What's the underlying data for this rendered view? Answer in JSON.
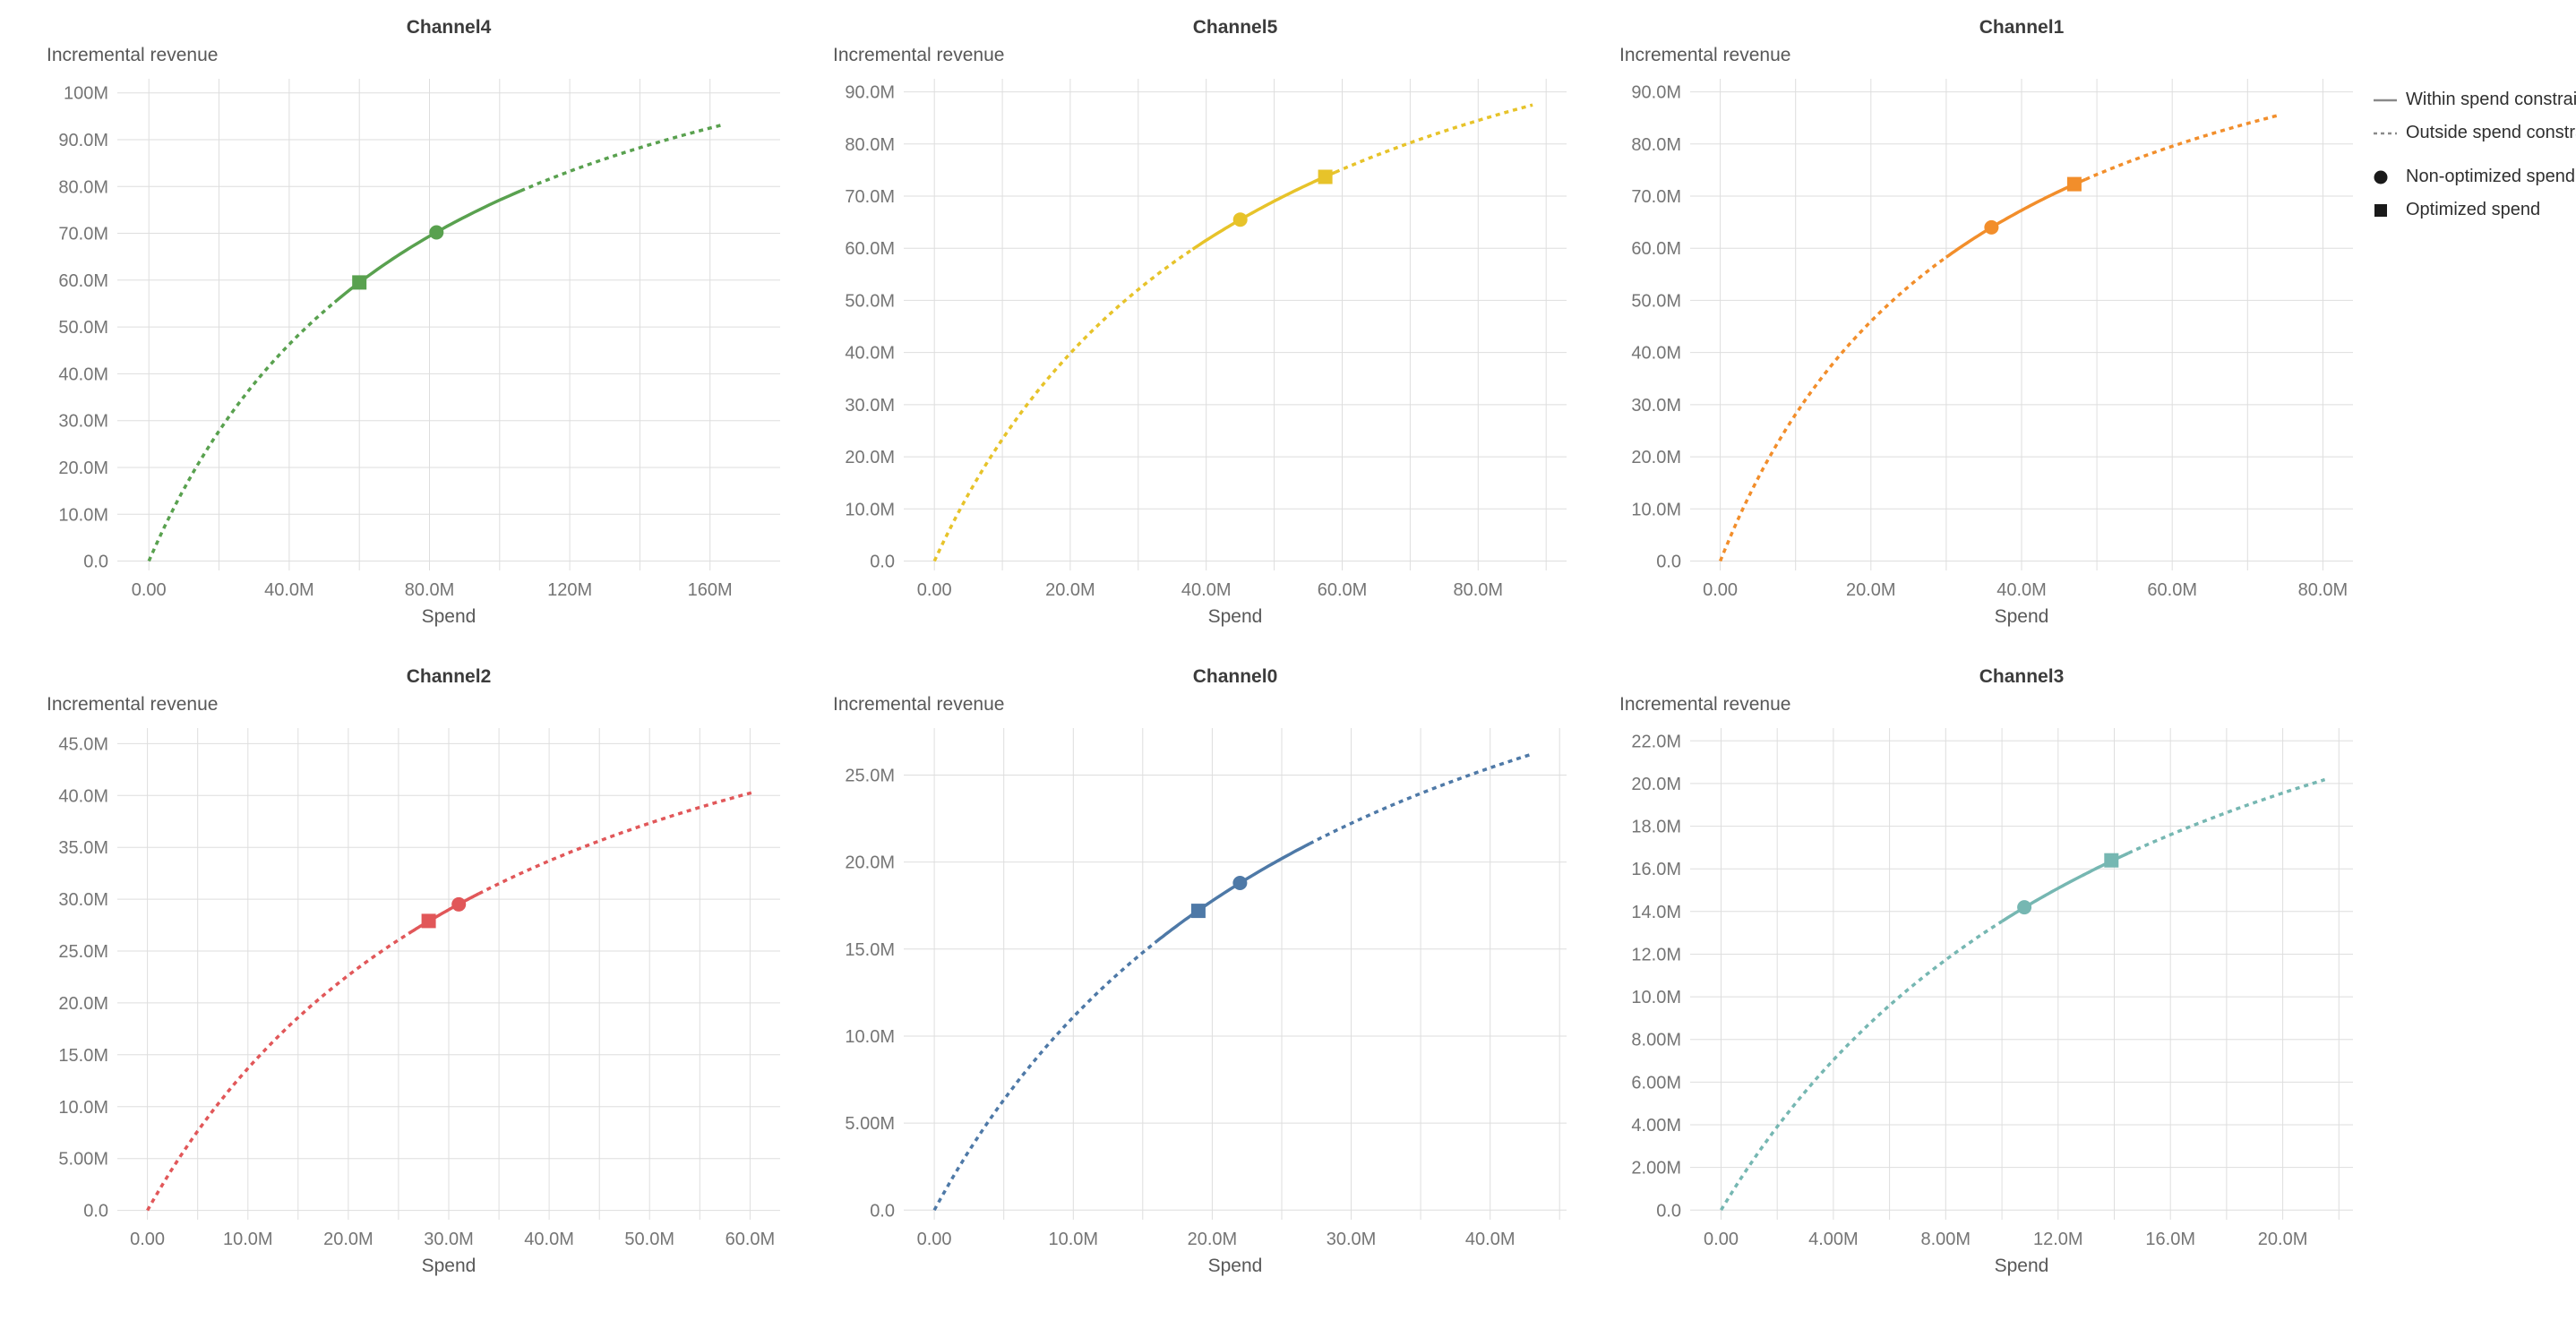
{
  "page": {
    "background": "#ffffff"
  },
  "legend": {
    "position": "top-right",
    "items": [
      {
        "label": "Within spend constraint",
        "symbol": "solid-line"
      },
      {
        "label": "Outside spend constraint",
        "symbol": "dashed-line"
      },
      {
        "label": "Non-optimized spend",
        "symbol": "circle"
      },
      {
        "label": "Optimized spend",
        "symbol": "square"
      }
    ]
  },
  "chart_data": [
    {
      "type": "line",
      "title": "Channel4",
      "xlabel": "Spend",
      "ylabel": "Incremental revenue",
      "color": "#59a14f",
      "x_domain": [
        -9,
        180
      ],
      "y_domain": [
        -2,
        103
      ],
      "x_grid_step": 20,
      "x_grid_max": 160,
      "x_ticks": [
        {
          "v": 0,
          "label": "0.00"
        },
        {
          "v": 40,
          "label": "40.0M"
        },
        {
          "v": 80,
          "label": "80.0M"
        },
        {
          "v": 120,
          "label": "120M"
        },
        {
          "v": 160,
          "label": "160M"
        }
      ],
      "y_ticks": [
        {
          "v": 0,
          "label": "0.0"
        },
        {
          "v": 10,
          "label": "10.0M"
        },
        {
          "v": 20,
          "label": "20.0M"
        },
        {
          "v": 30,
          "label": "30.0M"
        },
        {
          "v": 40,
          "label": "40.0M"
        },
        {
          "v": 50,
          "label": "50.0M"
        },
        {
          "v": 60,
          "label": "60.0M"
        },
        {
          "v": 70,
          "label": "70.0M"
        },
        {
          "v": 80,
          "label": "80.0M"
        },
        {
          "v": 90,
          "label": "90.0M"
        },
        {
          "v": 100,
          "label": "100M"
        }
      ],
      "curve": {
        "model": "hill",
        "vmax": 138.6,
        "half_saturation": 79.8,
        "x_end": 163,
        "solid_start": 53,
        "solid_end": 106
      },
      "curve_samples": [
        {
          "x": 40,
          "y": 46.3
        },
        {
          "x": 80,
          "y": 69.4
        },
        {
          "x": 120,
          "y": 83.2
        },
        {
          "x": 160,
          "y": 92.5
        }
      ],
      "points": {
        "non_optimized": {
          "x": 82,
          "y": 70.2
        },
        "optimized": {
          "x": 60,
          "y": 59.5
        }
      },
      "value_unit": "M"
    },
    {
      "type": "line",
      "title": "Channel5",
      "xlabel": "Spend",
      "ylabel": "Incremental revenue",
      "color": "#e7c32a",
      "x_domain": [
        -4.5,
        93
      ],
      "y_domain": [
        -1.8,
        92.5
      ],
      "x_grid_step": 10,
      "x_grid_max": 90,
      "x_ticks": [
        {
          "v": 0,
          "label": "0.00"
        },
        {
          "v": 20,
          "label": "20.0M"
        },
        {
          "v": 40,
          "label": "40.0M"
        },
        {
          "v": 60,
          "label": "60.0M"
        },
        {
          "v": 80,
          "label": "80.0M"
        }
      ],
      "y_ticks": [
        {
          "v": 0,
          "label": "0.0"
        },
        {
          "v": 10,
          "label": "10.0M"
        },
        {
          "v": 20,
          "label": "20.0M"
        },
        {
          "v": 30,
          "label": "30.0M"
        },
        {
          "v": 40,
          "label": "40.0M"
        },
        {
          "v": 50,
          "label": "50.0M"
        },
        {
          "v": 60,
          "label": "60.0M"
        },
        {
          "v": 70,
          "label": "70.0M"
        },
        {
          "v": 80,
          "label": "80.0M"
        },
        {
          "v": 90,
          "label": "90.0M"
        }
      ],
      "curve": {
        "model": "hill",
        "vmax": 134.9,
        "half_saturation": 47.7,
        "x_end": 88,
        "solid_start": 38,
        "solid_end": 59
      },
      "curve_samples": [
        {
          "x": 20,
          "y": 39.9
        },
        {
          "x": 40,
          "y": 61.5
        },
        {
          "x": 60,
          "y": 75.2
        },
        {
          "x": 80,
          "y": 84.5
        }
      ],
      "points": {
        "non_optimized": {
          "x": 45,
          "y": 65.5
        },
        "optimized": {
          "x": 57.5,
          "y": 73.7
        }
      },
      "value_unit": "M"
    },
    {
      "type": "line",
      "title": "Channel1",
      "xlabel": "Spend",
      "ylabel": "Incremental revenue",
      "color": "#f28e2b",
      "x_domain": [
        -4,
        84
      ],
      "y_domain": [
        -1.8,
        92.5
      ],
      "x_grid_step": 10,
      "x_grid_max": 80,
      "x_ticks": [
        {
          "v": 0,
          "label": "0.00"
        },
        {
          "v": 20,
          "label": "20.0M"
        },
        {
          "v": 40,
          "label": "40.0M"
        },
        {
          "v": 60,
          "label": "60.0M"
        },
        {
          "v": 80,
          "label": "80.0M"
        }
      ],
      "y_ticks": [
        {
          "v": 0,
          "label": "0.0"
        },
        {
          "v": 10,
          "label": "10.0M"
        },
        {
          "v": 20,
          "label": "20.0M"
        },
        {
          "v": 30,
          "label": "30.0M"
        },
        {
          "v": 40,
          "label": "40.0M"
        },
        {
          "v": 50,
          "label": "50.0M"
        },
        {
          "v": 60,
          "label": "60.0M"
        },
        {
          "v": 70,
          "label": "70.0M"
        },
        {
          "v": 80,
          "label": "80.0M"
        },
        {
          "v": 90,
          "label": "90.0M"
        }
      ],
      "curve": {
        "model": "hill",
        "vmax": 125.3,
        "half_saturation": 34.5,
        "x_end": 74,
        "solid_start": 30,
        "solid_end": 48.5
      },
      "curve_samples": [
        {
          "x": 20,
          "y": 46.0
        },
        {
          "x": 40,
          "y": 67.3
        },
        {
          "x": 60,
          "y": 79.6
        },
        {
          "x": 74,
          "y": 85.4
        }
      ],
      "points": {
        "non_optimized": {
          "x": 36,
          "y": 64.0
        },
        "optimized": {
          "x": 47,
          "y": 72.3
        }
      },
      "value_unit": "M"
    },
    {
      "type": "line",
      "title": "Channel2",
      "xlabel": "Spend",
      "ylabel": "Incremental revenue",
      "color": "#e15759",
      "x_domain": [
        -3,
        63
      ],
      "y_domain": [
        -0.9,
        46.5
      ],
      "x_grid_step": 5,
      "x_grid_max": 60,
      "x_ticks": [
        {
          "v": 0,
          "label": "0.00"
        },
        {
          "v": 10,
          "label": "10.0M"
        },
        {
          "v": 20,
          "label": "20.0M"
        },
        {
          "v": 30,
          "label": "30.0M"
        },
        {
          "v": 40,
          "label": "40.0M"
        },
        {
          "v": 50,
          "label": "50.0M"
        },
        {
          "v": 60,
          "label": "60.0M"
        }
      ],
      "y_ticks": [
        {
          "v": 0,
          "label": "0.0"
        },
        {
          "v": 5,
          "label": "5.00M"
        },
        {
          "v": 10,
          "label": "10.0M"
        },
        {
          "v": 15,
          "label": "15.0M"
        },
        {
          "v": 20,
          "label": "20.0M"
        },
        {
          "v": 25,
          "label": "25.0M"
        },
        {
          "v": 30,
          "label": "30.0M"
        },
        {
          "v": 35,
          "label": "35.0M"
        },
        {
          "v": 40,
          "label": "40.0M"
        },
        {
          "v": 45,
          "label": "45.0M"
        }
      ],
      "curve": {
        "model": "hill",
        "vmax": 65.7,
        "half_saturation": 38.0,
        "x_end": 60.5,
        "solid_start": 26,
        "solid_end": 33
      },
      "curve_samples": [
        {
          "x": 10,
          "y": 13.7
        },
        {
          "x": 20,
          "y": 22.7
        },
        {
          "x": 30,
          "y": 29.0
        },
        {
          "x": 40,
          "y": 33.7
        },
        {
          "x": 50,
          "y": 37.3
        },
        {
          "x": 60,
          "y": 40.2
        }
      ],
      "points": {
        "non_optimized": {
          "x": 31,
          "y": 29.5
        },
        "optimized": {
          "x": 28,
          "y": 27.9
        }
      },
      "value_unit": "M"
    },
    {
      "type": "line",
      "title": "Channel0",
      "xlabel": "Spend",
      "ylabel": "Incremental revenue",
      "color": "#4e79a7",
      "x_domain": [
        -2.2,
        45.5
      ],
      "y_domain": [
        -0.55,
        27.7
      ],
      "x_grid_step": 5,
      "x_grid_max": 45,
      "x_ticks": [
        {
          "v": 0,
          "label": "0.00"
        },
        {
          "v": 10,
          "label": "10.0M"
        },
        {
          "v": 20,
          "label": "20.0M"
        },
        {
          "v": 30,
          "label": "30.0M"
        },
        {
          "v": 40,
          "label": "40.0M"
        }
      ],
      "y_ticks": [
        {
          "v": 0,
          "label": "0.0"
        },
        {
          "v": 5,
          "label": "5.00M"
        },
        {
          "v": 10,
          "label": "10.0M"
        },
        {
          "v": 15,
          "label": "15.0M"
        },
        {
          "v": 20,
          "label": "20.0M"
        },
        {
          "v": 25,
          "label": "25.0M"
        }
      ],
      "curve": {
        "model": "hill",
        "vmax": 44.6,
        "half_saturation": 30.2,
        "x_end": 43,
        "solid_start": 16,
        "solid_end": 27
      },
      "curve_samples": [
        {
          "x": 10,
          "y": 11.1
        },
        {
          "x": 20,
          "y": 17.8
        },
        {
          "x": 30,
          "y": 22.2
        },
        {
          "x": 40,
          "y": 25.4
        }
      ],
      "points": {
        "non_optimized": {
          "x": 22,
          "y": 18.8
        },
        "optimized": {
          "x": 19,
          "y": 17.2
        }
      },
      "value_unit": "M"
    },
    {
      "type": "line",
      "title": "Channel3",
      "xlabel": "Spend",
      "ylabel": "Incremental revenue",
      "color": "#76b7b2",
      "x_domain": [
        -1.1,
        22.5
      ],
      "y_domain": [
        -0.45,
        22.6
      ],
      "x_grid_step": 2,
      "x_grid_max": 22,
      "x_ticks": [
        {
          "v": 0,
          "label": "0.00"
        },
        {
          "v": 4,
          "label": "4.00M"
        },
        {
          "v": 8,
          "label": "8.00M"
        },
        {
          "v": 12,
          "label": "12.0M"
        },
        {
          "v": 16,
          "label": "16.0M"
        },
        {
          "v": 20,
          "label": "20.0M"
        }
      ],
      "y_ticks": [
        {
          "v": 0,
          "label": "0.0"
        },
        {
          "v": 2,
          "label": "2.00M"
        },
        {
          "v": 4,
          "label": "4.00M"
        },
        {
          "v": 6,
          "label": "6.00M"
        },
        {
          "v": 8,
          "label": "8.00M"
        },
        {
          "v": 10,
          "label": "10.0M"
        },
        {
          "v": 12,
          "label": "12.0M"
        },
        {
          "v": 14,
          "label": "14.0M"
        },
        {
          "v": 16,
          "label": "16.0M"
        },
        {
          "v": 18,
          "label": "18.0M"
        },
        {
          "v": 20,
          "label": "20.0M"
        },
        {
          "v": 22,
          "label": "22.0M"
        }
      ],
      "curve": {
        "model": "hill",
        "vmax": 35.2,
        "half_saturation": 16.0,
        "x_end": 21.5,
        "solid_start": 10,
        "solid_end": 14.5
      },
      "curve_samples": [
        {
          "x": 4,
          "y": 7.0
        },
        {
          "x": 8,
          "y": 11.7
        },
        {
          "x": 12,
          "y": 15.1
        },
        {
          "x": 16,
          "y": 17.6
        },
        {
          "x": 20,
          "y": 19.6
        }
      ],
      "points": {
        "non_optimized": {
          "x": 10.8,
          "y": 14.2
        },
        "optimized": {
          "x": 13.9,
          "y": 16.4
        }
      },
      "value_unit": "M"
    }
  ]
}
